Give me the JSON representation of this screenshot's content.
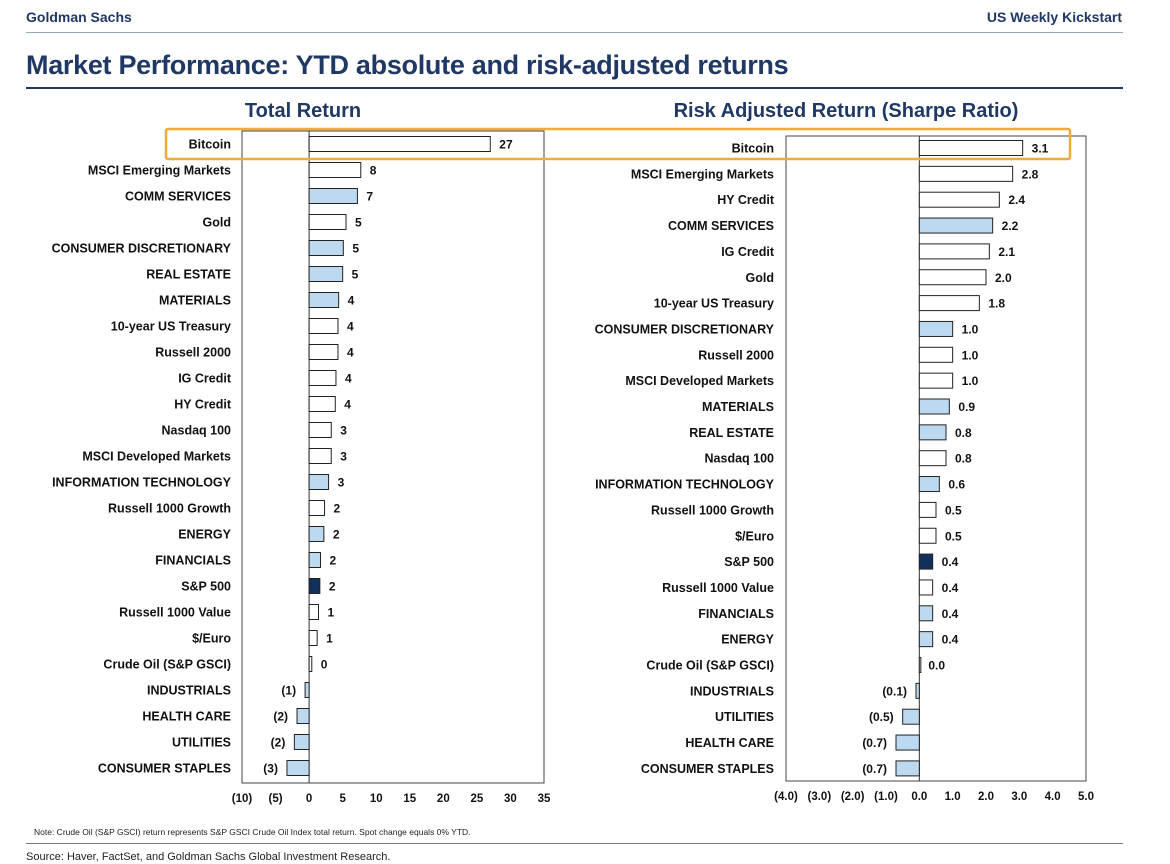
{
  "header": {
    "left": "Goldman Sachs",
    "right": "US Weekly Kickstart",
    "title": "Market Performance: YTD absolute and risk-adjusted returns"
  },
  "colors": {
    "light_bar": "#bcd9f0",
    "white_bar": "#ffffff",
    "dark_bar": "#11315a",
    "highlight": "#f3a93b",
    "title": "#1f3864"
  },
  "chart_data": [
    {
      "type": "bar",
      "orientation": "horizontal",
      "title": "Total Return",
      "xlim": [
        -10,
        35
      ],
      "ticks": [
        -10,
        -5,
        0,
        5,
        10,
        15,
        20,
        25,
        30,
        35
      ],
      "tick_labels": [
        "(10)",
        "(5)",
        "0",
        "5",
        "10",
        "15",
        "20",
        "25",
        "30",
        "35"
      ],
      "grid": false,
      "categories": [
        "Bitcoin",
        "MSCI Emerging Markets",
        "COMM SERVICES",
        "Gold",
        "CONSUMER DISCRETIONARY",
        "REAL ESTATE",
        "MATERIALS",
        "10-year US Treasury",
        "Russell 2000",
        "IG Credit",
        "HY Credit",
        "Nasdaq 100",
        "MSCI Developed Markets",
        "INFORMATION TECHNOLOGY",
        "Russell 1000 Growth",
        "ENERGY",
        "FINANCIALS",
        "S&P 500",
        "Russell 1000 Value",
        "$/Euro",
        "Crude Oil (S&P GSCI)",
        "INDUSTRIALS",
        "HEALTH CARE",
        "UTILITIES",
        "CONSUMER STAPLES"
      ],
      "values": [
        27,
        7.7,
        7.2,
        5.5,
        5.1,
        5.0,
        4.4,
        4.3,
        4.3,
        4.0,
        3.9,
        3.3,
        3.3,
        2.9,
        2.3,
        2.2,
        1.7,
        1.6,
        1.4,
        1.2,
        0.4,
        -0.6,
        -1.8,
        -2.2,
        -3.3
      ],
      "labels": [
        "27",
        "8",
        "7",
        "5",
        "5",
        "5",
        "4",
        "4",
        "4",
        "4",
        "4",
        "3",
        "3",
        "3",
        "2",
        "2",
        "2",
        "2",
        "1",
        "1",
        "0",
        "(1)",
        "(2)",
        "(2)",
        "(3)"
      ],
      "fills": [
        "white",
        "white",
        "light",
        "white",
        "light",
        "light",
        "light",
        "white",
        "white",
        "white",
        "white",
        "white",
        "white",
        "light",
        "white",
        "light",
        "light",
        "dark",
        "white",
        "white",
        "white",
        "light",
        "light",
        "light",
        "light"
      ]
    },
    {
      "type": "bar",
      "orientation": "horizontal",
      "title": "Risk Adjusted Return (Sharpe Ratio)",
      "xlim": [
        -4,
        5
      ],
      "ticks": [
        -4,
        -3,
        -2,
        -1,
        0,
        1,
        2,
        3,
        4,
        5
      ],
      "tick_labels": [
        "(4.0)",
        "(3.0)",
        "(2.0)",
        "(1.0)",
        "0.0",
        "1.0",
        "2.0",
        "3.0",
        "4.0",
        "5.0"
      ],
      "grid": false,
      "categories": [
        "Bitcoin",
        "MSCI Emerging Markets",
        "HY Credit",
        "COMM SERVICES",
        "IG Credit",
        "Gold",
        "10-year US Treasury",
        "CONSUMER DISCRETIONARY",
        "Russell 2000",
        "MSCI Developed Markets",
        "MATERIALS",
        "REAL ESTATE",
        "Nasdaq 100",
        "INFORMATION TECHNOLOGY",
        "Russell 1000 Growth",
        "$/Euro",
        "S&P 500",
        "Russell 1000 Value",
        "FINANCIALS",
        "ENERGY",
        "Crude Oil (S&P GSCI)",
        "INDUSTRIALS",
        "UTILITIES",
        "HEALTH CARE",
        "CONSUMER STAPLES"
      ],
      "values": [
        3.1,
        2.8,
        2.4,
        2.2,
        2.1,
        2.0,
        1.8,
        1.0,
        1.0,
        1.0,
        0.9,
        0.8,
        0.8,
        0.6,
        0.5,
        0.5,
        0.4,
        0.4,
        0.4,
        0.4,
        0.0,
        -0.1,
        -0.5,
        -0.7,
        -0.7
      ],
      "labels": [
        "3.1",
        "2.8",
        "2.4",
        "2.2",
        "2.1",
        "2.0",
        "1.8",
        "1.0",
        "1.0",
        "1.0",
        "0.9",
        "0.8",
        "0.8",
        "0.6",
        "0.5",
        "0.5",
        "0.4",
        "0.4",
        "0.4",
        "0.4",
        "0.0",
        "(0.1)",
        "(0.5)",
        "(0.7)",
        "(0.7)"
      ],
      "fills": [
        "white",
        "white",
        "white",
        "light",
        "white",
        "white",
        "white",
        "light",
        "white",
        "white",
        "light",
        "light",
        "white",
        "light",
        "white",
        "white",
        "dark",
        "white",
        "light",
        "light",
        "white",
        "light",
        "light",
        "light",
        "light"
      ]
    }
  ],
  "highlight_row": "Bitcoin",
  "footer": {
    "note": "Note: Crude Oil (S&P GSCI) return represents S&P GSCI Crude Oil Index total return. Spot change equals 0% YTD.",
    "source": "Source: Haver, FactSet, and Goldman Sachs Global Investment Research."
  }
}
